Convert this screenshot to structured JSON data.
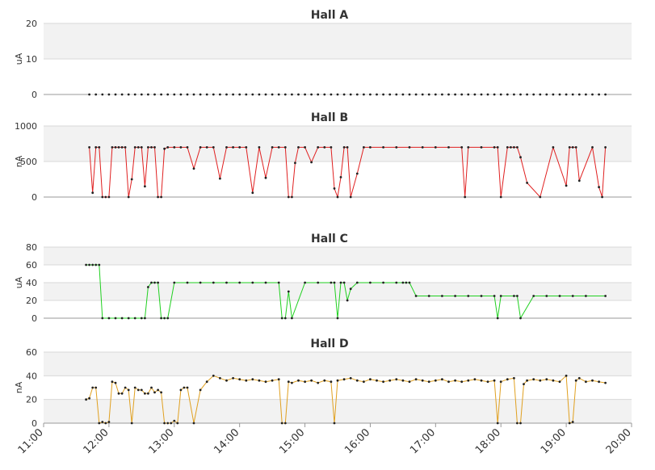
{
  "x_axis": {
    "ticks": [
      "11:00",
      "12:00",
      "13:00",
      "14:00",
      "15:00",
      "16:00",
      "17:00",
      "18:00",
      "19:00",
      "20:00"
    ],
    "range_hours": [
      11,
      20
    ]
  },
  "chart_data": [
    {
      "type": "line",
      "title": "Hall A",
      "ylabel": "uA",
      "ylim": [
        0,
        20
      ],
      "yticks": [
        "0",
        "10",
        "20"
      ],
      "color": "#d0d0d0",
      "series": [
        {
          "name": "",
          "x": [
            11.7,
            11.8,
            11.9,
            12.0,
            12.1,
            12.2,
            12.3,
            12.4,
            12.5,
            12.6,
            12.7,
            12.8,
            12.9,
            13.0,
            13.1,
            13.2,
            13.3,
            13.4,
            13.5,
            13.6,
            13.7,
            13.8,
            13.9,
            14.0,
            14.1,
            14.2,
            14.3,
            14.4,
            14.5,
            14.6,
            14.7,
            14.8,
            14.9,
            15.0,
            15.1,
            15.2,
            15.3,
            15.4,
            15.5,
            15.6,
            15.7,
            15.8,
            15.9,
            16.0,
            16.1,
            16.2,
            16.3,
            16.4,
            16.5,
            16.6,
            16.7,
            16.8,
            16.9,
            17.0,
            17.1,
            17.2,
            17.3,
            17.4,
            17.5,
            17.6,
            17.7,
            17.8,
            17.9,
            18.0,
            18.1,
            18.2,
            18.3,
            18.4,
            18.5,
            18.6,
            18.7,
            18.8,
            18.9,
            19.0,
            19.1,
            19.2,
            19.3,
            19.4,
            19.5,
            19.6
          ],
          "values": [
            0,
            0,
            0,
            0,
            0,
            0,
            0,
            0,
            0,
            0,
            0,
            0,
            0,
            0,
            0,
            0,
            0,
            0,
            0,
            0,
            0,
            0,
            0,
            0,
            0,
            0,
            0,
            0,
            0,
            0,
            0,
            0,
            0,
            0,
            0,
            0,
            0,
            0,
            0,
            0,
            0,
            0,
            0,
            0,
            0,
            0,
            0,
            0,
            0,
            0,
            0,
            0,
            0,
            0,
            0,
            0,
            0,
            0,
            0,
            0,
            0,
            0,
            0,
            0,
            0,
            0,
            0,
            0,
            0,
            0,
            0,
            0,
            0,
            0,
            0,
            0,
            0,
            0,
            0,
            0
          ]
        }
      ]
    },
    {
      "type": "line",
      "title": "Hall B",
      "ylabel": "nA",
      "ylim": [
        0,
        1000
      ],
      "yticks": [
        "0",
        "500",
        "1000"
      ],
      "color": "#e02020",
      "series": [
        {
          "name": "",
          "x": [
            11.7,
            11.75,
            11.8,
            11.85,
            11.9,
            11.95,
            12.0,
            12.05,
            12.1,
            12.15,
            12.2,
            12.25,
            12.3,
            12.35,
            12.4,
            12.45,
            12.5,
            12.55,
            12.6,
            12.65,
            12.7,
            12.75,
            12.8,
            12.85,
            12.9,
            13.0,
            13.1,
            13.2,
            13.3,
            13.4,
            13.5,
            13.6,
            13.7,
            13.8,
            13.9,
            14.0,
            14.1,
            14.2,
            14.3,
            14.4,
            14.5,
            14.6,
            14.7,
            14.75,
            14.8,
            14.85,
            14.9,
            15.0,
            15.1,
            15.2,
            15.3,
            15.4,
            15.45,
            15.5,
            15.55,
            15.6,
            15.65,
            15.7,
            15.8,
            15.9,
            16.0,
            16.2,
            16.4,
            16.6,
            16.8,
            17.0,
            17.2,
            17.4,
            17.45,
            17.5,
            17.7,
            17.9,
            17.95,
            18.0,
            18.1,
            18.15,
            18.2,
            18.25,
            18.3,
            18.4,
            18.6,
            18.8,
            19.0,
            19.05,
            19.1,
            19.15,
            19.2,
            19.4,
            19.5,
            19.55,
            19.6
          ],
          "values": [
            700,
            60,
            700,
            700,
            0,
            0,
            0,
            700,
            700,
            700,
            700,
            700,
            0,
            250,
            700,
            700,
            700,
            150,
            700,
            700,
            700,
            0,
            0,
            680,
            700,
            700,
            700,
            700,
            400,
            700,
            700,
            700,
            260,
            700,
            700,
            700,
            700,
            60,
            700,
            270,
            700,
            700,
            700,
            0,
            0,
            480,
            700,
            700,
            490,
            700,
            700,
            700,
            120,
            0,
            280,
            700,
            700,
            0,
            330,
            700,
            700,
            700,
            700,
            700,
            700,
            700,
            700,
            700,
            0,
            700,
            700,
            700,
            700,
            0,
            700,
            700,
            700,
            700,
            560,
            200,
            0,
            700,
            160,
            700,
            700,
            700,
            230,
            700,
            140,
            0,
            700
          ]
        }
      ]
    },
    {
      "type": "line",
      "title": "Hall C",
      "ylabel": "uA",
      "ylim": [
        0,
        80
      ],
      "yticks": [
        "0",
        "20",
        "40",
        "60",
        "80"
      ],
      "color": "#20d020",
      "series": [
        {
          "name": "",
          "x": [
            11.65,
            11.7,
            11.75,
            11.8,
            11.85,
            11.9,
            12.0,
            12.1,
            12.2,
            12.3,
            12.4,
            12.5,
            12.55,
            12.6,
            12.65,
            12.7,
            12.75,
            12.8,
            12.85,
            12.9,
            13.0,
            13.2,
            13.4,
            13.6,
            13.8,
            14.0,
            14.2,
            14.4,
            14.6,
            14.65,
            14.7,
            14.75,
            14.8,
            15.0,
            15.2,
            15.4,
            15.45,
            15.5,
            15.55,
            15.6,
            15.65,
            15.7,
            15.8,
            16.0,
            16.2,
            16.4,
            16.5,
            16.55,
            16.6,
            16.7,
            16.9,
            17.1,
            17.3,
            17.5,
            17.7,
            17.9,
            17.95,
            18.0,
            18.2,
            18.25,
            18.3,
            18.5,
            18.7,
            18.9,
            19.1,
            19.3,
            19.6
          ],
          "values": [
            60,
            60,
            60,
            60,
            60,
            0,
            0,
            0,
            0,
            0,
            0,
            0,
            0,
            35,
            40,
            40,
            40,
            0,
            0,
            0,
            40,
            40,
            40,
            40,
            40,
            40,
            40,
            40,
            40,
            0,
            0,
            30,
            0,
            40,
            40,
            40,
            40,
            0,
            40,
            40,
            20,
            33,
            40,
            40,
            40,
            40,
            40,
            40,
            40,
            25,
            25,
            25,
            25,
            25,
            25,
            25,
            0,
            25,
            25,
            25,
            0,
            25,
            25,
            25,
            25,
            25,
            25
          ]
        }
      ]
    },
    {
      "type": "line",
      "title": "Hall D",
      "ylabel": "nA",
      "ylim": [
        0,
        60
      ],
      "yticks": [
        "0",
        "20",
        "40",
        "60"
      ],
      "color": "#e0a020",
      "series": [
        {
          "name": "",
          "x": [
            11.65,
            11.7,
            11.75,
            11.8,
            11.85,
            11.9,
            11.95,
            12.0,
            12.05,
            12.1,
            12.15,
            12.2,
            12.25,
            12.3,
            12.35,
            12.4,
            12.45,
            12.5,
            12.55,
            12.6,
            12.65,
            12.7,
            12.75,
            12.8,
            12.85,
            12.9,
            12.95,
            13.0,
            13.05,
            13.1,
            13.15,
            13.2,
            13.3,
            13.4,
            13.5,
            13.6,
            13.7,
            13.8,
            13.9,
            14.0,
            14.1,
            14.2,
            14.3,
            14.4,
            14.5,
            14.6,
            14.65,
            14.7,
            14.75,
            14.8,
            14.9,
            15.0,
            15.1,
            15.2,
            15.3,
            15.4,
            15.45,
            15.5,
            15.6,
            15.7,
            15.8,
            15.9,
            16.0,
            16.1,
            16.2,
            16.3,
            16.4,
            16.5,
            16.6,
            16.7,
            16.8,
            16.9,
            17.0,
            17.1,
            17.2,
            17.3,
            17.4,
            17.5,
            17.6,
            17.7,
            17.8,
            17.9,
            17.95,
            18.0,
            18.1,
            18.2,
            18.25,
            18.3,
            18.35,
            18.4,
            18.5,
            18.6,
            18.7,
            18.8,
            18.9,
            19.0,
            19.05,
            19.1,
            19.15,
            19.2,
            19.3,
            19.4,
            19.5,
            19.6
          ],
          "values": [
            20,
            21,
            30,
            30,
            0,
            1,
            0,
            1,
            35,
            34,
            25,
            25,
            30,
            28,
            0,
            30,
            28,
            28,
            25,
            25,
            30,
            26,
            28,
            26,
            0,
            0,
            0,
            2,
            0,
            28,
            30,
            30,
            0,
            28,
            35,
            40,
            38,
            36,
            38,
            37,
            36,
            37,
            36,
            35,
            36,
            37,
            0,
            0,
            35,
            34,
            36,
            35,
            36,
            34,
            36,
            35,
            0,
            36,
            37,
            38,
            36,
            35,
            37,
            36,
            35,
            36,
            37,
            36,
            35,
            37,
            36,
            35,
            36,
            37,
            35,
            36,
            35,
            36,
            37,
            36,
            35,
            36,
            0,
            35,
            37,
            38,
            0,
            0,
            33,
            36,
            37,
            36,
            37,
            36,
            35,
            40,
            0,
            1,
            36,
            38,
            35,
            36,
            35,
            34
          ]
        }
      ]
    }
  ]
}
